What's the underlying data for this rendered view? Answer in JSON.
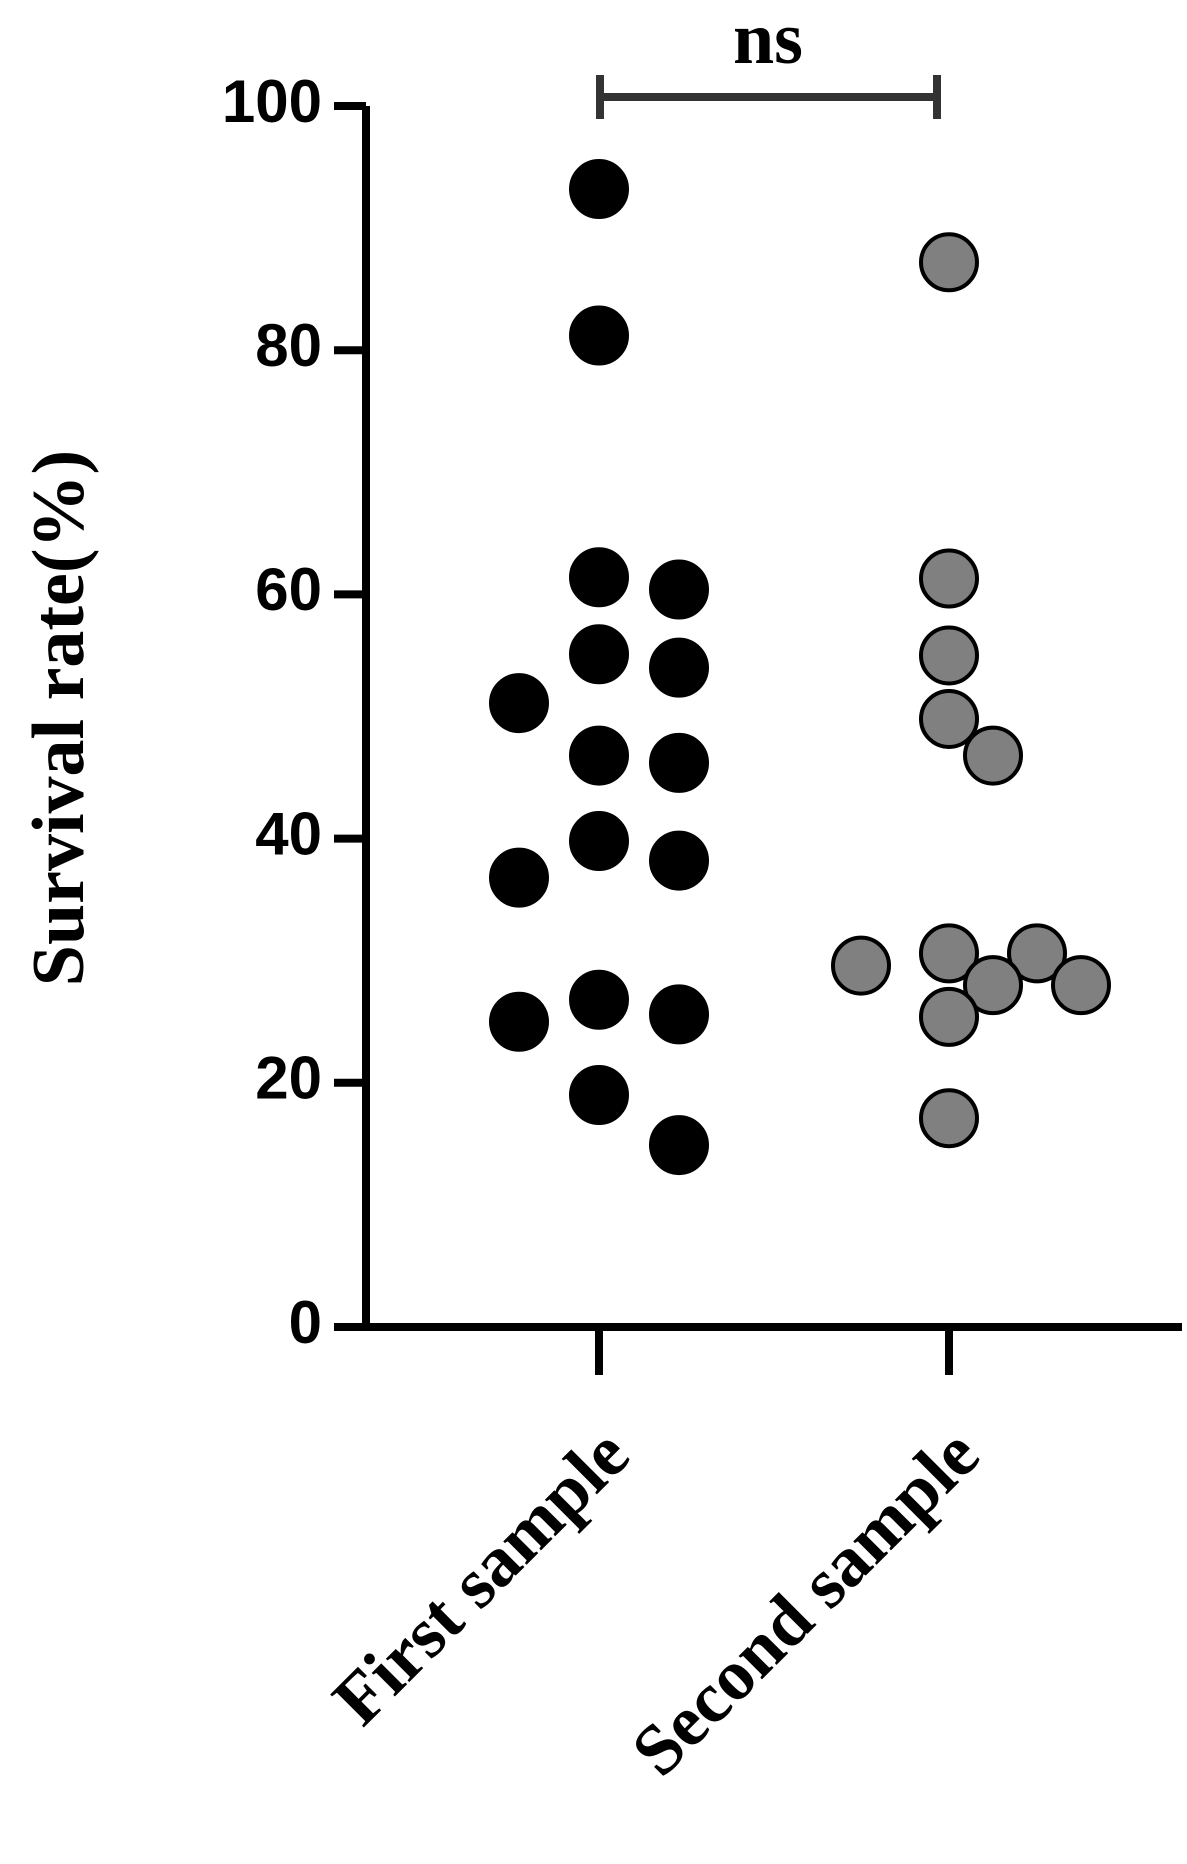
{
  "chart_data": {
    "type": "scatter",
    "y_label": "Survival rate(%)",
    "categories": [
      "First sample",
      "Second sample"
    ],
    "series": [
      {
        "name": "First sample",
        "color": "#000000",
        "values": [
          93.2,
          81.2,
          61.4,
          60.4,
          55.1,
          54.0,
          51.1,
          46.8,
          46.2,
          39.8,
          38.2,
          36.8,
          26.8,
          25.6,
          25.0,
          19.0,
          14.9
        ]
      },
      {
        "name": "Second sample",
        "color": "#808080",
        "values": [
          87.2,
          61.3,
          55.0,
          49.8,
          46.8,
          30.6,
          30.6,
          29.6,
          28.0,
          28.0,
          25.4,
          17.1
        ]
      }
    ],
    "significance": "ns",
    "ylim": [
      0,
      100
    ],
    "yticks": [
      0,
      20,
      40,
      60,
      80,
      100
    ]
  }
}
